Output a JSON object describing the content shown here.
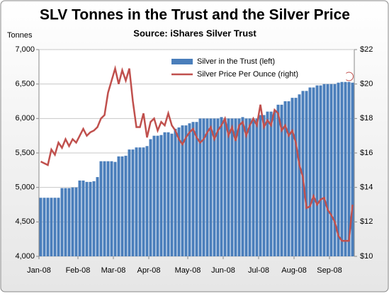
{
  "chart_data": {
    "type": "bar-line",
    "title": "SLV Tonnes in the Trust and the Silver Price",
    "subtitle": "Source: iShares Silver Trust",
    "y_label": "Tonnes",
    "categories": [
      "Jan-08",
      null,
      null,
      null,
      null,
      null,
      null,
      null,
      null,
      null,
      null,
      "Feb-08",
      null,
      null,
      null,
      null,
      null,
      null,
      null,
      null,
      null,
      "Mar-08",
      null,
      null,
      null,
      null,
      null,
      null,
      null,
      null,
      null,
      "Apr-08",
      null,
      null,
      null,
      null,
      null,
      null,
      null,
      null,
      null,
      null,
      "May-08",
      null,
      null,
      null,
      null,
      null,
      null,
      null,
      null,
      null,
      "Jun-08",
      null,
      null,
      null,
      null,
      null,
      null,
      null,
      null,
      null,
      "Jul-08",
      null,
      null,
      null,
      null,
      null,
      null,
      null,
      null,
      null,
      "Aug-08",
      null,
      null,
      null,
      null,
      null,
      null,
      null,
      null,
      null,
      "Sep-08",
      null,
      null,
      null,
      null,
      null,
      null
    ],
    "series": [
      {
        "name": "Silver in the Trust (left)",
        "type": "bar",
        "color": "#4a7ebb",
        "values": [
          4850,
          4850,
          4850,
          4850,
          4850,
          4850,
          4990,
          4990,
          4990,
          5000,
          5000,
          5100,
          5100,
          5080,
          5080,
          5090,
          5150,
          5380,
          5380,
          5380,
          5380,
          5370,
          5450,
          5450,
          5460,
          5550,
          5550,
          5580,
          5580,
          5580,
          5600,
          5700,
          5750,
          5750,
          5760,
          5800,
          5800,
          5780,
          5850,
          5870,
          5900,
          5900,
          5930,
          5950,
          5950,
          6000,
          6000,
          6000,
          6000,
          6000,
          6000,
          6020,
          6000,
          6000,
          6000,
          6000,
          6000,
          6020,
          6000,
          6000,
          6000,
          6000,
          6050,
          6050,
          6100,
          6100,
          6100,
          6200,
          6200,
          6250,
          6250,
          6300,
          6300,
          6350,
          6400,
          6400,
          6450,
          6450,
          6480,
          6480,
          6500,
          6500,
          6500,
          6500,
          6520,
          6530,
          6530,
          6530,
          6520
        ]
      },
      {
        "name": "Silver Price Per Ounce (right)",
        "type": "line",
        "axis": "y2",
        "color": "#c0504d",
        "values": [
          15.5,
          15.4,
          15.3,
          16.2,
          15.9,
          16.6,
          16.3,
          16.8,
          16.4,
          16.8,
          16.6,
          17.0,
          17.4,
          17.0,
          17.2,
          17.3,
          17.5,
          18.0,
          18.2,
          19.5,
          20.2,
          20.9,
          20.0,
          20.8,
          20.2,
          20.9,
          19.0,
          17.5,
          17.5,
          18.3,
          16.9,
          17.8,
          18.0,
          17.3,
          17.8,
          17.6,
          18.3,
          17.6,
          17.3,
          16.8,
          16.5,
          16.9,
          17.2,
          17.4,
          16.9,
          16.6,
          16.8,
          17.2,
          17.5,
          16.8,
          17.3,
          17.6,
          18.0,
          17.0,
          17.5,
          16.7,
          17.6,
          17.8,
          17.0,
          17.6,
          18.0,
          17.6,
          18.8,
          17.5,
          17.9,
          17.6,
          18.5,
          18.3,
          17.3,
          17.6,
          17.0,
          17.3,
          16.6,
          15.3,
          14.6,
          12.8,
          12.9,
          13.5,
          13.0,
          13.3,
          13.4,
          12.7,
          12.4,
          12.0,
          11.2,
          10.9,
          10.9,
          10.9,
          13.0
        ]
      }
    ],
    "ylim": [
      4000,
      7000
    ],
    "yticks": [
      {
        "value": 4000,
        "label": "4,000"
      },
      {
        "value": 4500,
        "label": "4,500"
      },
      {
        "value": 5000,
        "label": "5,000"
      },
      {
        "value": 5500,
        "label": "5,500"
      },
      {
        "value": 6000,
        "label": "6,000"
      },
      {
        "value": 6500,
        "label": "6,500"
      },
      {
        "value": 7000,
        "label": "7,000"
      }
    ],
    "y2lim": [
      10,
      22
    ],
    "y2ticks": [
      {
        "value": 10,
        "label": "$10"
      },
      {
        "value": 12,
        "label": "$12"
      },
      {
        "value": 14,
        "label": "$14"
      },
      {
        "value": 16,
        "label": "$16"
      },
      {
        "value": 18,
        "label": "$18"
      },
      {
        "value": 20,
        "label": "$20"
      },
      {
        "value": 22,
        "label": "$22"
      }
    ],
    "grid": true,
    "legend": "top-right"
  }
}
